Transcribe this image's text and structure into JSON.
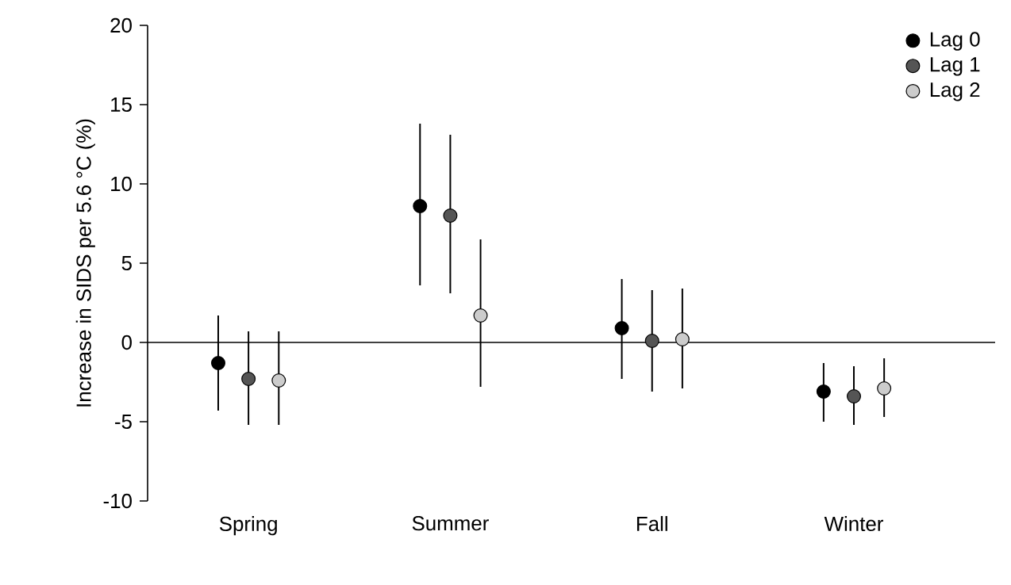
{
  "chart_data": {
    "type": "scatter",
    "ylabel": "Increase in SIDS per 5.6 °C (%)",
    "categories": [
      "Spring",
      "Summer",
      "Fall",
      "Winter"
    ],
    "series": [
      {
        "name": "Lag 0",
        "color": "#000000",
        "values": [
          -1.3,
          8.6,
          0.9,
          -3.1
        ],
        "errors": [
          [
            -4.3,
            1.7
          ],
          [
            3.6,
            13.8
          ],
          [
            -2.3,
            4.0
          ],
          [
            -5.0,
            -1.3
          ]
        ]
      },
      {
        "name": "Lag 1",
        "color": "#555555",
        "values": [
          -2.3,
          8.0,
          0.1,
          -3.4
        ],
        "errors": [
          [
            -5.2,
            0.7
          ],
          [
            3.1,
            13.1
          ],
          [
            -3.1,
            3.3
          ],
          [
            -5.2,
            -1.5
          ]
        ]
      },
      {
        "name": "Lag 2",
        "color": "#cccccc",
        "values": [
          -2.4,
          1.7,
          0.2,
          -2.9
        ],
        "errors": [
          [
            -5.2,
            0.7
          ],
          [
            -2.8,
            6.5
          ],
          [
            -2.9,
            3.4
          ],
          [
            -4.7,
            -1.0
          ]
        ]
      }
    ],
    "ylim": [
      -10,
      20
    ],
    "yticks": [
      -10,
      -5,
      0,
      5,
      10,
      15,
      20
    ],
    "ref_lines": [
      {
        "axis": "y",
        "value": 0
      }
    ],
    "legend": "top right",
    "marker": "circle",
    "grid": false
  }
}
